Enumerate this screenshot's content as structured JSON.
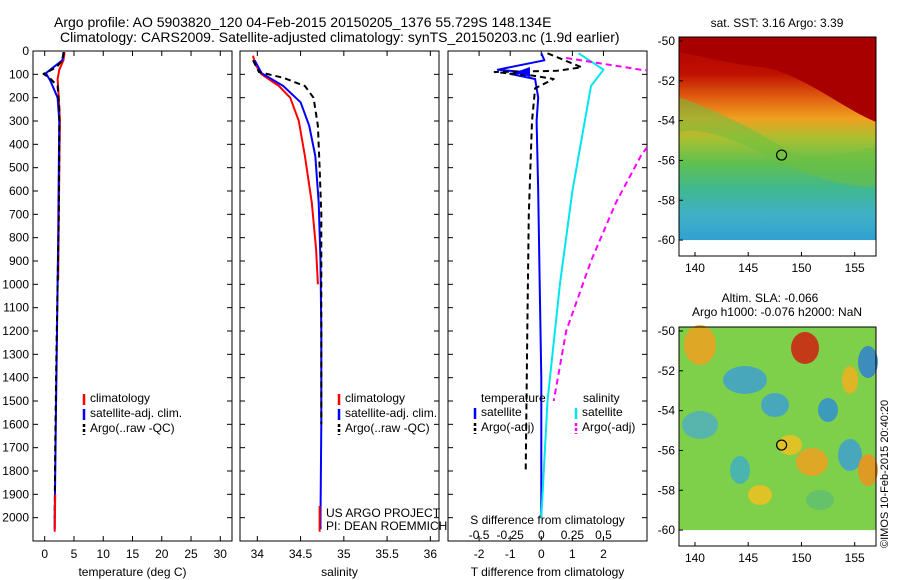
{
  "header": {
    "line1": "Argo profile: AO 5903820_120 04-Feb-2015 20150205_1376 55.729S 148.134E",
    "line2": "Climatology: CARS2009. Satellite-adjusted climatology: synTS_20150203.nc (1.9d earlier)"
  },
  "colors": {
    "climatology": "#ff0000",
    "satellite": "#0000ff",
    "argo": "#000000",
    "satellite_s": "#00e5ee",
    "argo_s": "#ff00ff"
  },
  "chart_data": [
    {
      "type": "line",
      "id": "temperature",
      "xlabel": "temperature (deg C)",
      "ylabel": "",
      "xlim": [
        -2,
        32
      ],
      "ylim": [
        0,
        2100
      ],
      "y_reversed": true,
      "xticks": [
        0,
        5,
        10,
        15,
        20,
        25,
        30
      ],
      "yticks": [
        0,
        100,
        200,
        300,
        400,
        500,
        600,
        700,
        800,
        900,
        1000,
        1100,
        1200,
        1300,
        1400,
        1500,
        1600,
        1700,
        1800,
        1900,
        2000
      ],
      "legend": [
        "climatology",
        "satellite-adj. clim.",
        "Argo(..raw -QC)"
      ],
      "series": [
        {
          "name": "climatology",
          "style": "climatology",
          "points": [
            [
              3.4,
              5
            ],
            [
              3.2,
              40
            ],
            [
              2.5,
              80
            ],
            [
              2.2,
              120
            ],
            [
              2.4,
              200
            ],
            [
              2.6,
              300
            ],
            [
              2.5,
              500
            ],
            [
              2.4,
              700
            ],
            [
              2.3,
              980
            ]
          ]
        },
        {
          "name": "satellite-adj. clim.",
          "style": "satellite",
          "points": [
            [
              3.2,
              5
            ],
            [
              3.0,
              40
            ],
            [
              0.2,
              95
            ],
            [
              1.0,
              130
            ],
            [
              2.2,
              200
            ],
            [
              2.5,
              300
            ],
            [
              2.4,
              500
            ],
            [
              2.3,
              800
            ],
            [
              2.1,
              1200
            ],
            [
              1.9,
              1600
            ],
            [
              1.7,
              2000
            ],
            [
              1.7,
              2050
            ]
          ]
        },
        {
          "name": "Argo(..raw -QC)",
          "style": "argo",
          "points": [
            [
              3.3,
              5
            ],
            [
              3.0,
              40
            ],
            [
              2.0,
              70
            ],
            [
              -0.2,
              98
            ],
            [
              0.8,
              115
            ],
            [
              2.2,
              150
            ],
            [
              2.5,
              250
            ],
            [
              2.5,
              400
            ],
            [
              2.4,
              700
            ],
            [
              2.2,
              1000
            ],
            [
              2.0,
              1300
            ],
            [
              1.8,
              1700
            ],
            [
              1.7,
              2000
            ]
          ]
        },
        {
          "name": "",
          "style": "climatology",
          "points": [
            [
              1.8,
              1900
            ],
            [
              1.7,
              2060
            ]
          ]
        }
      ]
    },
    {
      "type": "line",
      "id": "salinity",
      "xlabel": "salinity",
      "ylabel": "",
      "xlim": [
        33.8,
        36.1
      ],
      "ylim": [
        0,
        2100
      ],
      "y_reversed": true,
      "xticks": [
        34,
        34.5,
        35,
        35.5,
        36
      ],
      "legend": [
        "climatology",
        "satellite-adj. clim.",
        "Argo(..raw -QC)"
      ],
      "annotation": [
        "US ARGO PROJECT",
        "PI: DEAN ROEMMICH"
      ],
      "series": [
        {
          "name": "climatology",
          "style": "climatology",
          "points": [
            [
              33.95,
              20
            ],
            [
              33.98,
              60
            ],
            [
              34.05,
              100
            ],
            [
              34.25,
              150
            ],
            [
              34.38,
              200
            ],
            [
              34.48,
              300
            ],
            [
              34.55,
              450
            ],
            [
              34.63,
              650
            ],
            [
              34.68,
              850
            ],
            [
              34.7,
              1000
            ]
          ]
        },
        {
          "name": "satellite-adj. clim.",
          "style": "satellite",
          "points": [
            [
              33.97,
              40
            ],
            [
              34.05,
              95
            ],
            [
              34.3,
              150
            ],
            [
              34.5,
              220
            ],
            [
              34.6,
              320
            ],
            [
              34.67,
              450
            ],
            [
              34.71,
              650
            ],
            [
              34.73,
              900
            ],
            [
              34.74,
              1200
            ],
            [
              34.74,
              1600
            ],
            [
              34.73,
              2000
            ],
            [
              34.73,
              2050
            ]
          ]
        },
        {
          "name": "Argo(..raw -QC)",
          "style": "argo",
          "points": [
            [
              33.95,
              40
            ],
            [
              34.02,
              90
            ],
            [
              34.3,
              115
            ],
            [
              34.55,
              150
            ],
            [
              34.65,
              200
            ],
            [
              34.7,
              320
            ],
            [
              34.72,
              500
            ],
            [
              34.74,
              700
            ],
            [
              34.74,
              900
            ],
            [
              34.74,
              1200
            ],
            [
              34.74,
              1600
            ]
          ]
        },
        {
          "name": "",
          "style": "climatology",
          "points": [
            [
              34.72,
              1950
            ],
            [
              34.72,
              2060
            ]
          ]
        }
      ]
    },
    {
      "type": "line",
      "id": "difference",
      "xlabel": "T difference from climatology",
      "xlabel_top": "S difference from climatology",
      "xlim": [
        -3,
        3.4
      ],
      "s_xlim": [
        -0.75,
        0.85
      ],
      "ylim": [
        0,
        2100
      ],
      "y_reversed": true,
      "xticks": [
        -2,
        -1,
        0,
        1,
        2
      ],
      "s_xticks": [
        -0.5,
        -0.25,
        0,
        0.25,
        0.5
      ],
      "legend_t_title": "temperature",
      "legend_s_title": "salinity",
      "legend_t": [
        "satellite",
        "Argo(-adj)"
      ],
      "legend_s": [
        "satellite",
        "Argo(-adj)"
      ],
      "series": [
        {
          "name": "satellite",
          "style": "satellite",
          "points": [
            [
              0,
              10
            ],
            [
              0.1,
              40
            ],
            [
              -1.4,
              80
            ],
            [
              -0.4,
              92
            ],
            [
              -1.0,
              98
            ],
            [
              -0.2,
              120
            ],
            [
              -0.1,
              200
            ],
            [
              -0.15,
              300
            ],
            [
              -0.1,
              600
            ],
            [
              -0.05,
              1000
            ],
            [
              0,
              1400
            ],
            [
              0,
              1800
            ],
            [
              0,
              2000
            ]
          ]
        },
        {
          "name": "Argo(-adj)",
          "style": "argo",
          "points": [
            [
              0.2,
              10
            ],
            [
              1.3,
              70
            ],
            [
              0.5,
              85
            ],
            [
              -1.5,
              90
            ],
            [
              -0.3,
              105
            ],
            [
              0.4,
              120
            ],
            [
              -0.2,
              160
            ],
            [
              -0.3,
              300
            ],
            [
              -0.4,
              700
            ],
            [
              -0.45,
              1200
            ],
            [
              -0.5,
              1800
            ]
          ]
        },
        {
          "name": "satellite",
          "style": "satellite_s",
          "points": [
            [
              0.3,
              10
            ],
            [
              0.5,
              80
            ],
            [
              0.4,
              150
            ],
            [
              0.35,
              300
            ],
            [
              0.25,
              600
            ],
            [
              0.15,
              1000
            ],
            [
              0.05,
              1500
            ],
            [
              0,
              2000
            ]
          ]
        },
        {
          "name": "Argo(-adj)",
          "style": "argo_s",
          "points": [
            [
              0.2,
              30
            ],
            [
              0.8,
              80
            ],
            [
              1.5,
              120
            ],
            [
              1.3,
              200
            ],
            [
              1.0,
              300
            ],
            [
              0.8,
              450
            ],
            [
              0.6,
              650
            ],
            [
              0.4,
              900
            ],
            [
              0.2,
              1200
            ],
            [
              0.1,
              1500
            ]
          ]
        }
      ]
    },
    {
      "type": "heatmap",
      "id": "sst-map",
      "title": "sat. SST: 3.16 Argo: 3.39",
      "xlim": [
        138.5,
        157
      ],
      "ylim": [
        -60.8,
        -49.8
      ],
      "xticks": [
        140,
        145,
        150,
        155
      ],
      "yticks": [
        -50,
        -52,
        -54,
        -56,
        -58,
        -60
      ],
      "data_bottom": -60,
      "marker": [
        148.134,
        -55.729
      ]
    },
    {
      "type": "heatmap",
      "id": "sla-map",
      "title": "Altim. SLA: -0.066",
      "subtitle": "Argo h1000: -0.076 h2000: NaN",
      "xlim": [
        138.5,
        157
      ],
      "ylim": [
        -60.8,
        -49.8
      ],
      "xticks": [
        140,
        145,
        150,
        155
      ],
      "yticks": [
        -50,
        -52,
        -54,
        -56,
        -58,
        -60
      ],
      "data_bottom": -60,
      "marker": [
        148.134,
        -55.729
      ]
    }
  ],
  "credit": "©IMOS 10-Feb-2015 20:40:20"
}
